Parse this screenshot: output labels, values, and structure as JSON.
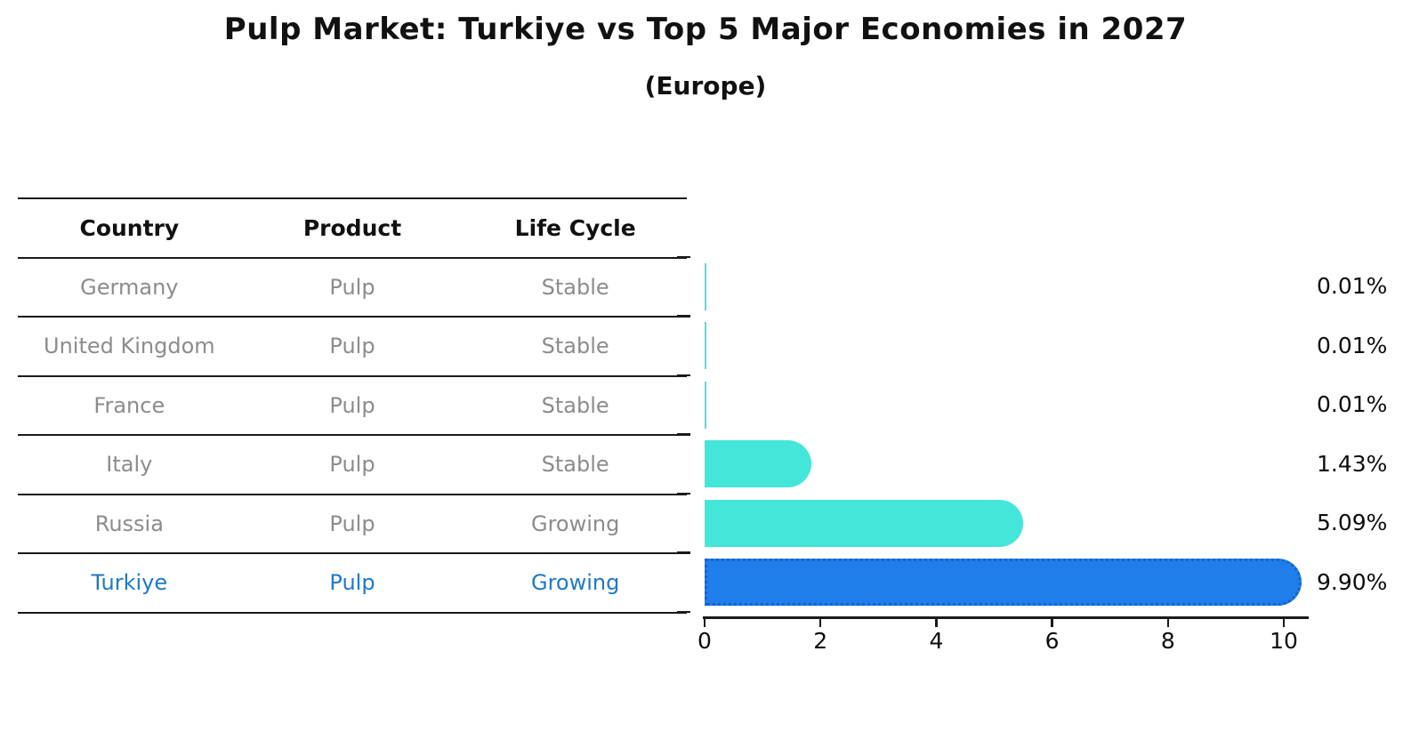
{
  "title": "Pulp Market: Turkiye vs Top 5 Major Economies in 2027",
  "subtitle": "(Europe)",
  "table": {
    "headers": [
      "Country",
      "Product",
      "Life Cycle"
    ],
    "rows": [
      {
        "country": "Germany",
        "product": "Pulp",
        "life_cycle": "Stable",
        "highlight": false
      },
      {
        "country": "United Kingdom",
        "product": "Pulp",
        "life_cycle": "Stable",
        "highlight": false
      },
      {
        "country": "France",
        "product": "Pulp",
        "life_cycle": "Stable",
        "highlight": false
      },
      {
        "country": "Italy",
        "product": "Pulp",
        "life_cycle": "Stable",
        "highlight": false
      },
      {
        "country": "Russia",
        "product": "Pulp",
        "life_cycle": "Growing",
        "highlight": false
      },
      {
        "country": "Turkiye",
        "product": "Pulp",
        "life_cycle": "Growing",
        "highlight": true
      }
    ]
  },
  "chart_data": {
    "type": "bar",
    "orientation": "horizontal",
    "categories": [
      "Germany",
      "United Kingdom",
      "France",
      "Italy",
      "Russia",
      "Turkiye"
    ],
    "values": [
      0.01,
      0.01,
      0.01,
      1.43,
      5.09,
      9.9
    ],
    "value_labels": [
      "0.01%",
      "0.01%",
      "0.01%",
      "1.43%",
      "5.09%",
      "9.90%"
    ],
    "highlight_category": "Turkiye",
    "xlim": [
      0,
      10
    ],
    "xticks": [
      "0",
      "2",
      "4",
      "6",
      "8",
      "10"
    ],
    "grid": false,
    "legend": false,
    "colors": {
      "bar_default": "#45e6da",
      "bar_highlight": "#1f7eea",
      "bar_highlight_border": "#1463d2",
      "highlight_text": "#1f78c8",
      "axis": "#1a1a1a"
    }
  }
}
